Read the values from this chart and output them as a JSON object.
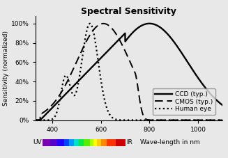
{
  "title": "Spectral Sensitivity",
  "xlabel": "Wave-length in nm",
  "ylabel": "Sensitivity (normalized)",
  "xlim": [
    330,
    1100
  ],
  "ylim": [
    0,
    1.08
  ],
  "yticks": [
    0.0,
    0.2,
    0.4,
    0.6,
    0.8,
    1.0
  ],
  "ytick_labels": [
    "0%",
    "20%",
    "40%",
    "60%",
    "80%",
    "100%"
  ],
  "xticks": [
    400,
    600,
    800,
    1000
  ],
  "legend_labels": [
    "CCD (typ.)",
    "CMOS (typ.)",
    "Human eye"
  ],
  "uv_label": "UV",
  "ir_label": "IR",
  "background_color": "#e8e8e8",
  "line_color": "#000000",
  "spectrum_colors": [
    {
      "x": 360,
      "color": "#7b00b4"
    },
    {
      "x": 390,
      "color": "#5500cc"
    },
    {
      "x": 420,
      "color": "#2200ff"
    },
    {
      "x": 450,
      "color": "#0044ff"
    },
    {
      "x": 470,
      "color": "#0099ff"
    },
    {
      "x": 490,
      "color": "#00ddcc"
    },
    {
      "x": 510,
      "color": "#00ee44"
    },
    {
      "x": 530,
      "color": "#55ee00"
    },
    {
      "x": 555,
      "color": "#aaff00"
    },
    {
      "x": 570,
      "color": "#ffff00"
    },
    {
      "x": 585,
      "color": "#ffcc00"
    },
    {
      "x": 600,
      "color": "#ff8800"
    },
    {
      "x": 625,
      "color": "#ff3300"
    },
    {
      "x": 660,
      "color": "#cc0000"
    },
    {
      "x": 700,
      "color": "#990000"
    }
  ]
}
